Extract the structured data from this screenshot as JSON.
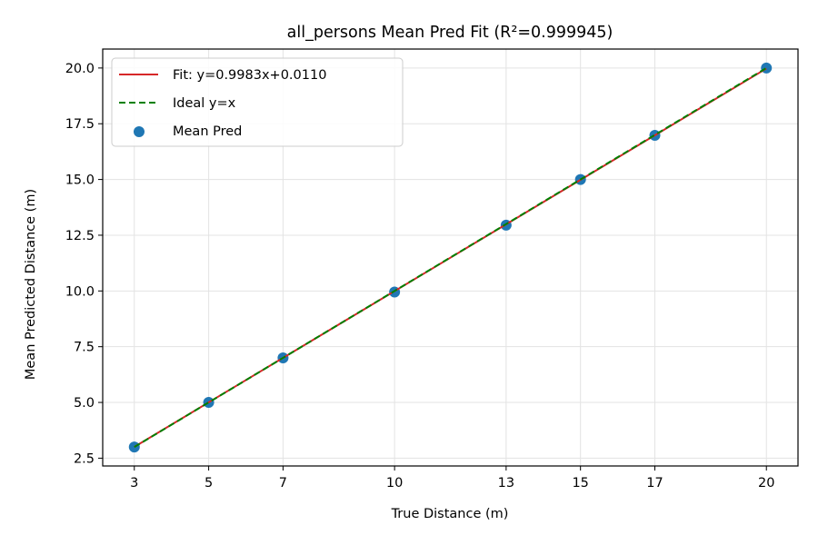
{
  "chart_data": {
    "type": "scatter",
    "title": "all_persons Mean Pred Fit (R²=0.999945)",
    "xlabel": "True Distance (m)",
    "ylabel": "Mean Predicted Distance (m)",
    "xlim": [
      2.15,
      20.85
    ],
    "ylim": [
      2.15,
      20.85
    ],
    "xticks": [
      3,
      5,
      7,
      10,
      13,
      15,
      17,
      20
    ],
    "xtick_labels": [
      "3",
      "5",
      "7",
      "10",
      "13",
      "15",
      "17",
      "20"
    ],
    "yticks": [
      2.5,
      5.0,
      7.5,
      10.0,
      12.5,
      15.0,
      17.5,
      20.0
    ],
    "ytick_labels": [
      "2.5",
      "5.0",
      "7.5",
      "10.0",
      "12.5",
      "15.0",
      "17.5",
      "20.0"
    ],
    "grid": true,
    "legend_position": "top-left",
    "series": [
      {
        "name": "Fit: y=0.9983x+0.0110",
        "kind": "line",
        "style": "solid",
        "color": "#d62728",
        "slope": 0.9983,
        "intercept": 0.011,
        "x": [
          3,
          20
        ]
      },
      {
        "name": "Ideal y=x",
        "kind": "line",
        "style": "dashed",
        "color": "#008000",
        "slope": 1.0,
        "intercept": 0.0,
        "x": [
          3,
          20
        ]
      },
      {
        "name": "Mean Pred",
        "kind": "scatter",
        "color": "#1f77b4",
        "x": [
          3,
          5,
          7,
          10,
          13,
          15,
          17,
          20
        ],
        "y": [
          3.0,
          5.0,
          7.0,
          9.95,
          12.95,
          15.0,
          16.98,
          20.0
        ]
      }
    ]
  }
}
